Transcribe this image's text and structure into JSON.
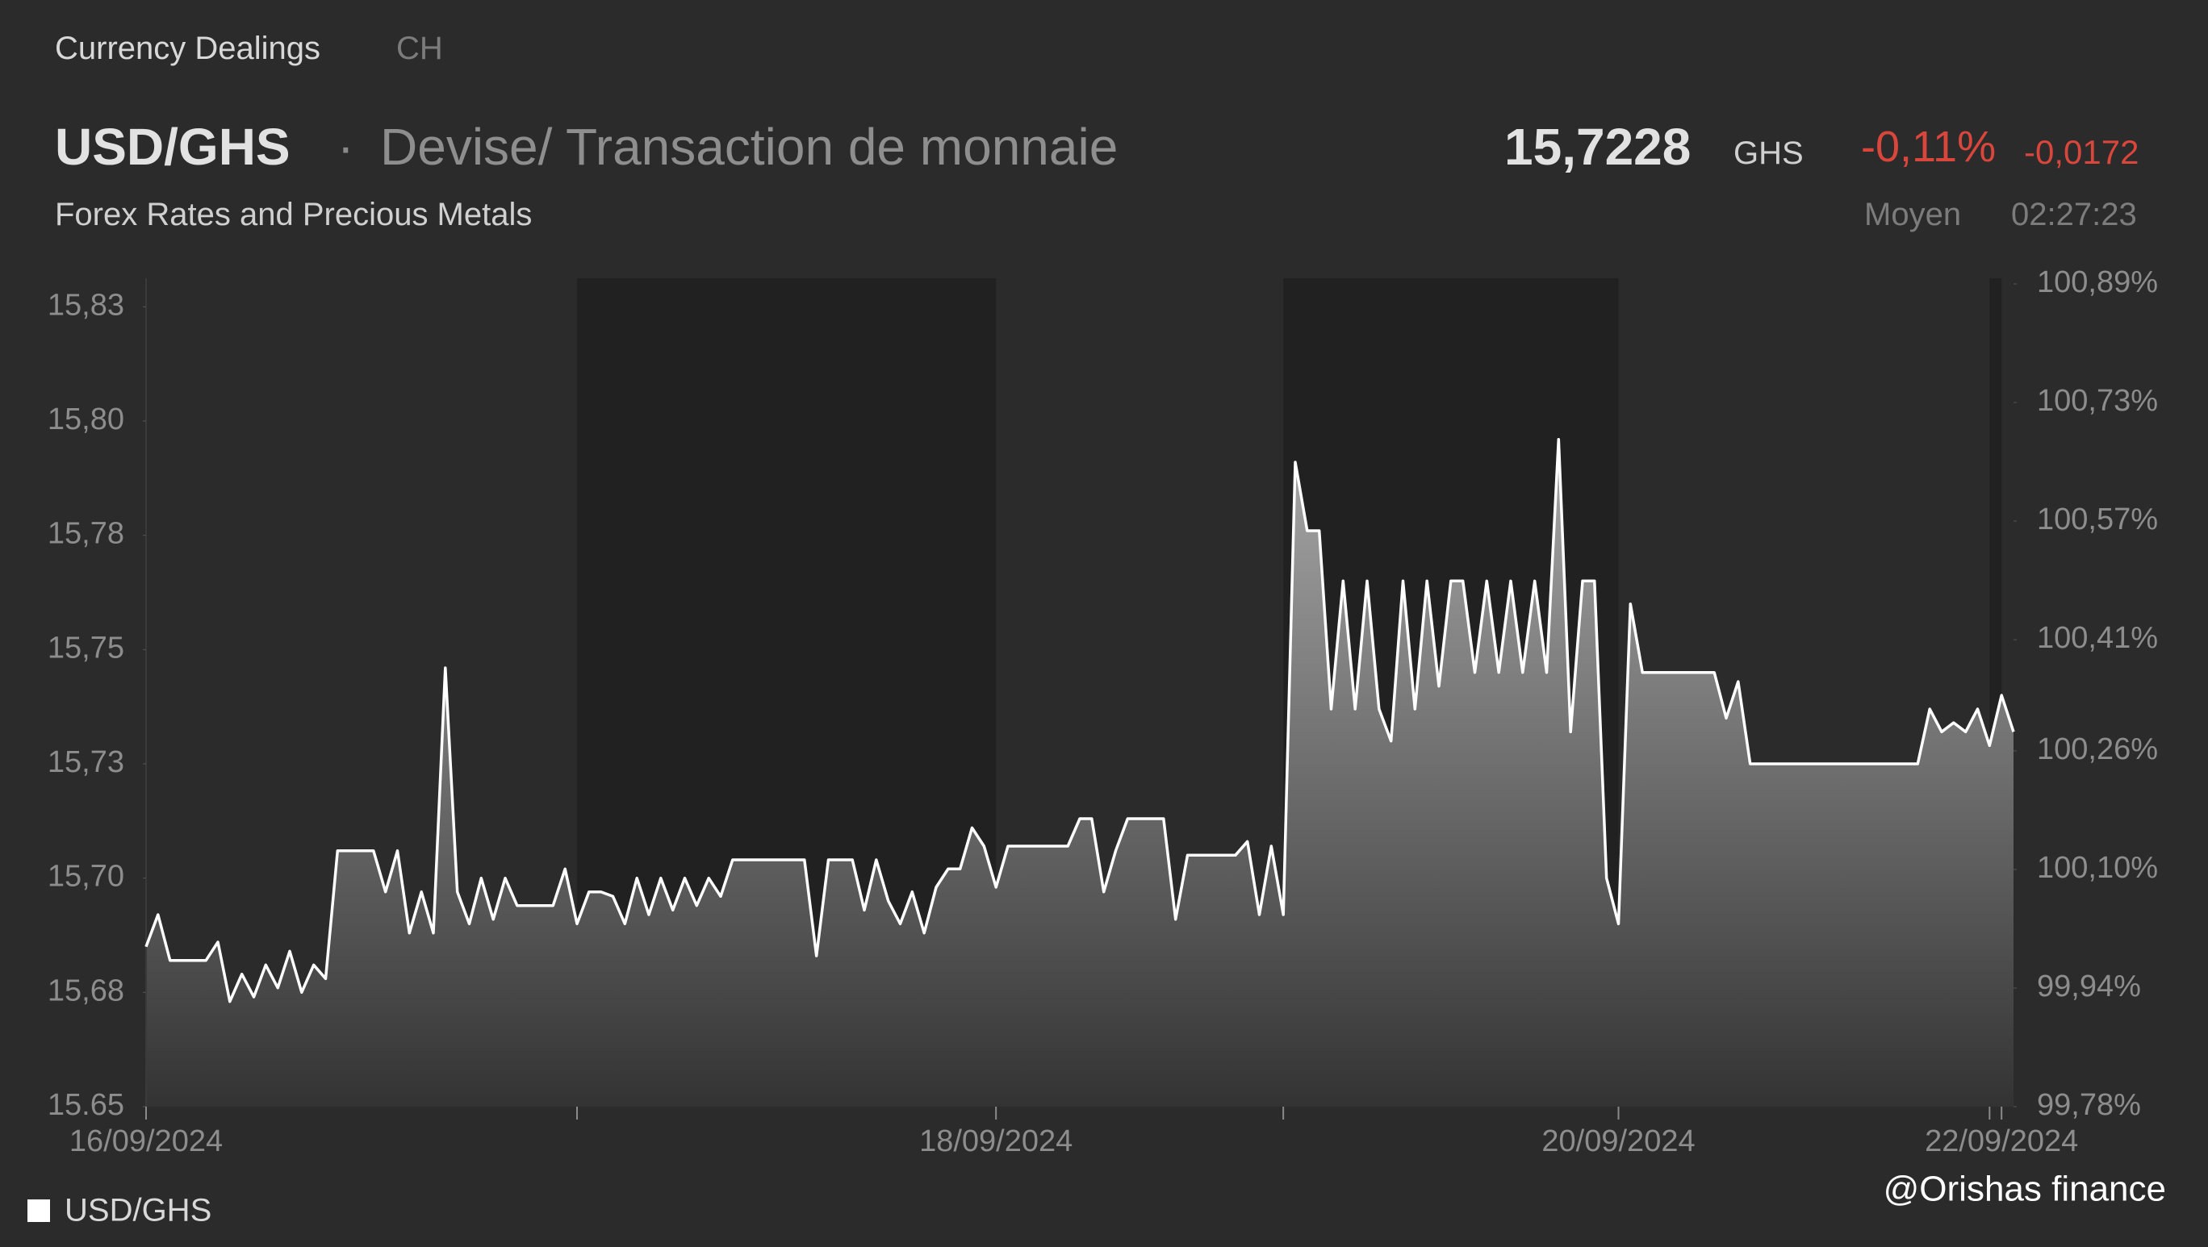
{
  "header": {
    "source": "Currency Dealings",
    "region": "CH",
    "symbol": "USD/GHS",
    "separator": "·",
    "instrument": "Devise/ Transaction de monnaie",
    "category": "Forex Rates and Precious Metals",
    "price": "15,7228",
    "currency": "GHS",
    "change_pct": "-0,11%",
    "change_abs": "-0,0172",
    "price_type": "Moyen",
    "time": "02:27:23"
  },
  "watermark": "@Orishas finance",
  "chart_data": {
    "type": "area",
    "grid": false,
    "color": "#ffffff",
    "ylim": [
      15.65,
      15.83
    ],
    "yticks": [
      15.65,
      {
        "value": 15.675,
        "label": "15,68"
      },
      {
        "value": 15.7,
        "label": "15,70"
      },
      {
        "value": 15.725,
        "label": "15,73"
      },
      {
        "value": 15.75,
        "label": "15,75"
      },
      {
        "value": 15.775,
        "label": "15,78"
      },
      {
        "value": 15.8,
        "label": "15,80"
      },
      {
        "value": 15.825,
        "label": "15,83"
      }
    ],
    "y2lim": [
      99.78,
      100.89
    ],
    "y2ticks": [
      {
        "value": 99.78,
        "label": "99,78%"
      },
      {
        "value": 99.94,
        "label": "99,94%"
      },
      {
        "value": 100.1,
        "label": "100,10%"
      },
      {
        "value": 100.26,
        "label": "100,26%"
      },
      {
        "value": 100.41,
        "label": "100,41%"
      },
      {
        "value": 100.57,
        "label": "100,57%"
      },
      {
        "value": 100.73,
        "label": "100,73%"
      },
      {
        "value": 100.89,
        "label": "100,89%"
      }
    ],
    "xlim": [
      0,
      156
    ],
    "xticks": [
      {
        "value": 0,
        "label": "16/09/2024"
      },
      {
        "value": 36,
        "label": null
      },
      {
        "value": 71,
        "label": "18/09/2024"
      },
      {
        "value": 95,
        "label": null
      },
      {
        "value": 123,
        "label": "20/09/2024"
      },
      {
        "value": 154,
        "label": null
      },
      {
        "value": 155,
        "label": "22/09/2024"
      }
    ],
    "series": [
      {
        "name": "USD/GHS",
        "color": "#ffffff",
        "values": [
          15.685,
          15.692,
          15.682,
          15.682,
          15.682,
          15.682,
          15.686,
          15.673,
          15.679,
          15.674,
          15.681,
          15.676,
          15.684,
          15.675,
          15.681,
          15.678,
          15.706,
          15.706,
          15.706,
          15.706,
          15.697,
          15.706,
          15.688,
          15.697,
          15.688,
          15.746,
          15.697,
          15.69,
          15.7,
          15.691,
          15.7,
          15.694,
          15.694,
          15.694,
          15.694,
          15.702,
          15.69,
          15.697,
          15.697,
          15.696,
          15.69,
          15.7,
          15.692,
          15.7,
          15.693,
          15.7,
          15.694,
          15.7,
          15.696,
          15.704,
          15.704,
          15.704,
          15.704,
          15.704,
          15.704,
          15.704,
          15.683,
          15.704,
          15.704,
          15.704,
          15.693,
          15.704,
          15.695,
          15.69,
          15.697,
          15.688,
          15.698,
          15.702,
          15.702,
          15.711,
          15.707,
          15.698,
          15.707,
          15.707,
          15.707,
          15.707,
          15.707,
          15.707,
          15.713,
          15.713,
          15.697,
          15.706,
          15.713,
          15.713,
          15.713,
          15.713,
          15.691,
          15.705,
          15.705,
          15.705,
          15.705,
          15.705,
          15.708,
          15.692,
          15.707,
          15.692,
          15.791,
          15.776,
          15.776,
          15.737,
          15.765,
          15.737,
          15.765,
          15.737,
          15.73,
          15.765,
          15.737,
          15.765,
          15.742,
          15.765,
          15.765,
          15.745,
          15.765,
          15.745,
          15.765,
          15.745,
          15.765,
          15.745,
          15.796,
          15.732,
          15.765,
          15.765,
          15.7,
          15.69,
          15.76,
          15.745,
          15.745,
          15.745,
          15.745,
          15.745,
          15.745,
          15.745,
          15.735,
          15.743,
          15.725,
          15.725,
          15.725,
          15.725,
          15.725,
          15.725,
          15.725,
          15.725,
          15.725,
          15.725,
          15.725,
          15.725,
          15.725,
          15.725,
          15.725,
          15.737,
          15.732,
          15.734,
          15.732,
          15.737,
          15.729,
          15.74,
          15.732
        ]
      }
    ]
  }
}
